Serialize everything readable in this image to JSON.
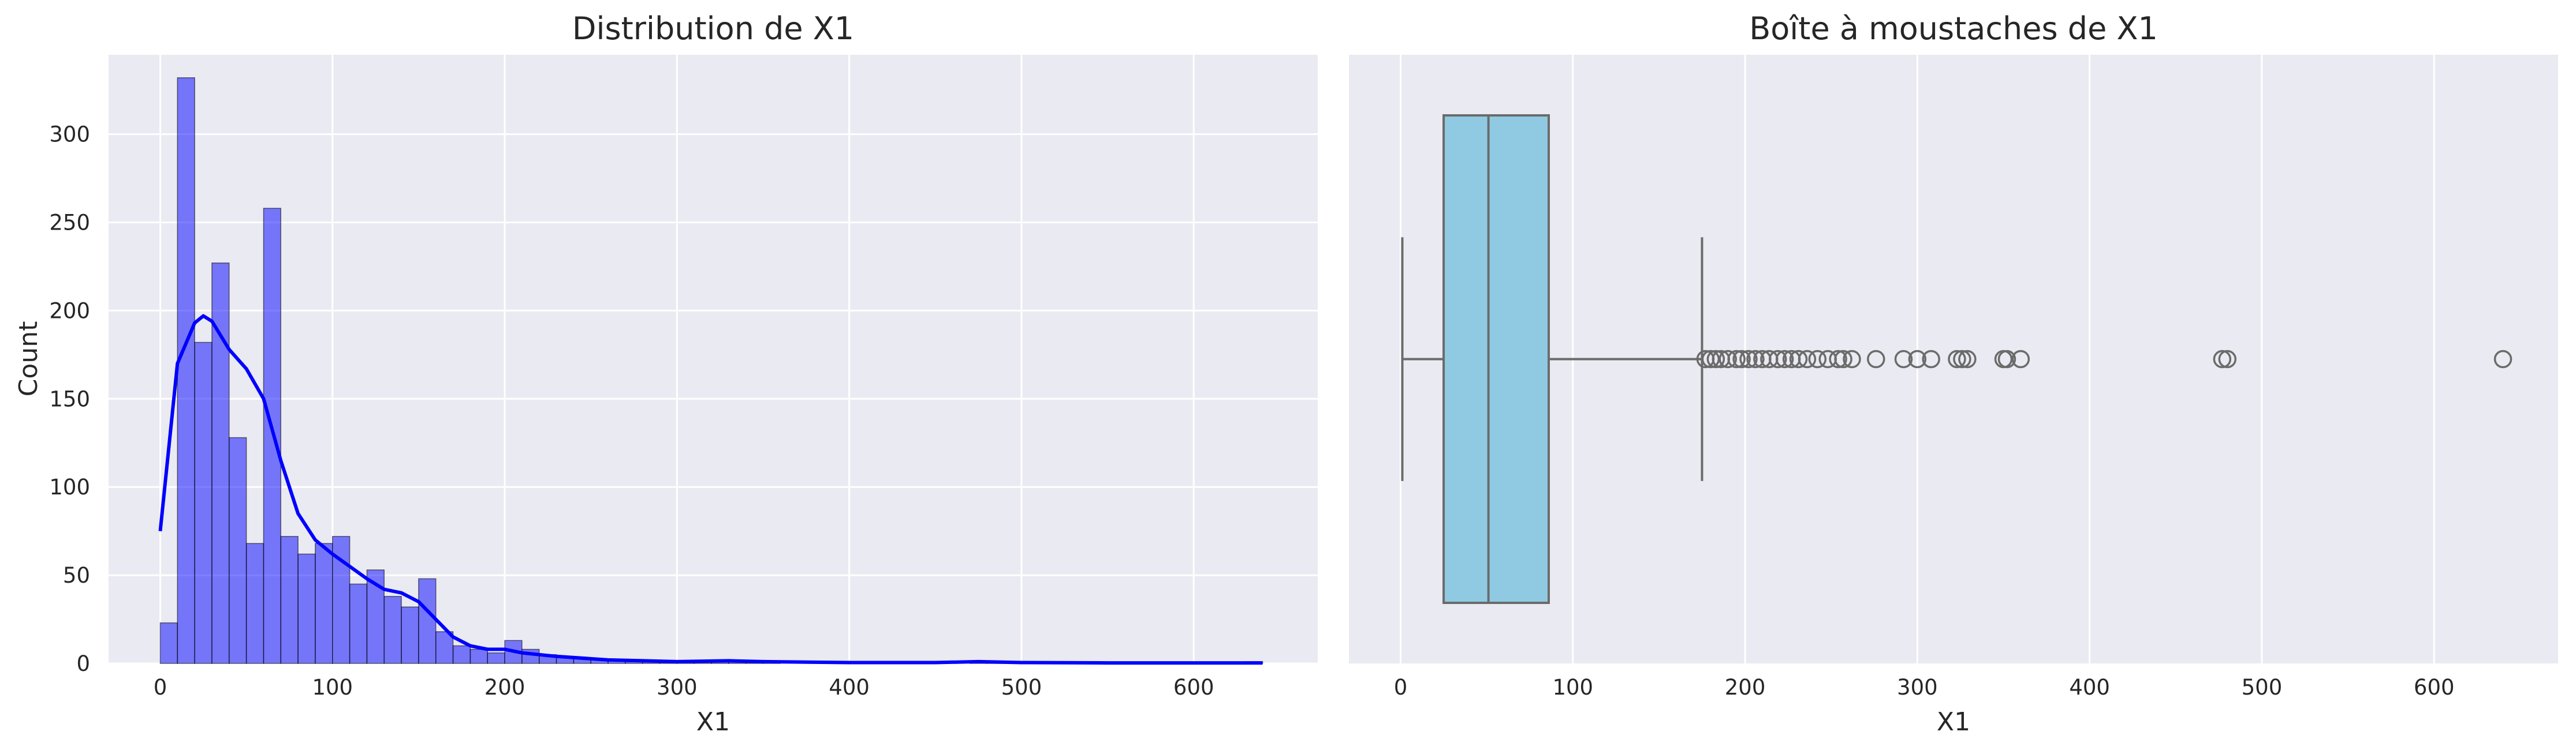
{
  "chart_data": [
    {
      "type": "bar",
      "subtype": "histogram_with_kde",
      "title": "Distribution de X1",
      "xlabel": "X1",
      "ylabel": "Count",
      "xlim": [
        -30,
        672
      ],
      "ylim": [
        0,
        345
      ],
      "xticks": [
        0,
        100,
        200,
        300,
        400,
        500,
        600
      ],
      "yticks": [
        0,
        50,
        100,
        150,
        200,
        250,
        300
      ],
      "bin_width": 10,
      "bins_start": 0,
      "values": [
        23,
        332,
        182,
        227,
        128,
        68,
        258,
        72,
        62,
        68,
        72,
        45,
        53,
        38,
        32,
        48,
        18,
        10,
        8,
        6,
        13,
        8,
        5,
        4,
        3,
        2,
        2,
        1,
        1,
        1,
        1,
        1,
        1,
        1,
        1,
        1,
        0,
        0,
        0,
        0,
        0,
        0,
        0,
        0,
        0,
        0,
        0,
        1,
        1,
        0,
        0,
        0,
        0,
        0,
        0,
        0,
        0,
        0,
        0,
        0,
        0,
        0,
        0,
        1
      ],
      "series": [
        {
          "type": "line",
          "x": [
            0,
            10,
            20,
            25,
            30,
            40,
            50,
            60,
            70,
            80,
            90,
            100,
            110,
            120,
            130,
            140,
            150,
            160,
            170,
            180,
            190,
            200,
            210,
            230,
            260,
            300,
            330,
            350,
            400,
            450,
            475,
            500,
            550,
            600,
            640
          ],
          "values": [
            75,
            170,
            193,
            197,
            194,
            178,
            167,
            150,
            115,
            85,
            70,
            62,
            55,
            48,
            42,
            40,
            35,
            25,
            15,
            10,
            8,
            8,
            6,
            4,
            2,
            1,
            1.5,
            1,
            0.5,
            0.5,
            1,
            0.5,
            0.3,
            0.3,
            0.3
          ]
        }
      ],
      "colors": {
        "bars": "#0000ff",
        "bar_edge": "#000000",
        "kde": "#0000ff",
        "background": "#eaeaf2",
        "grid": "#ffffff"
      },
      "grid": true
    },
    {
      "type": "box",
      "title": "Boîte à moustaches de X1",
      "xlabel": "X1",
      "xlim": [
        -30,
        672
      ],
      "xticks": [
        0,
        100,
        200,
        300,
        400,
        500,
        600
      ],
      "whisker_low": 1,
      "q1": 25,
      "median": 51,
      "q3": 86,
      "whisker_high": 175,
      "outliers": [
        177,
        180,
        183,
        186,
        190,
        195,
        198,
        202,
        206,
        210,
        214,
        219,
        223,
        227,
        231,
        236,
        242,
        248,
        254,
        257,
        262,
        276,
        292,
        300,
        308,
        323,
        326,
        329,
        350,
        352,
        360,
        477,
        480,
        640
      ],
      "colors": {
        "box": "#8fcae2",
        "lines": "#6b6b6b",
        "background": "#eaeaf2",
        "grid": "#ffffff"
      },
      "grid": true
    }
  ]
}
